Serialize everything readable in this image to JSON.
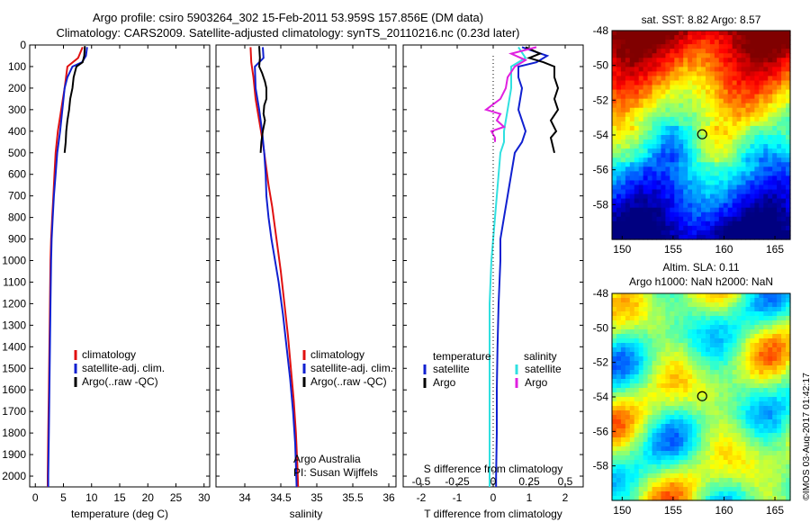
{
  "header": {
    "title1": "Argo profile: csiro 5903264_302 15-Feb-2011 53.959S 157.856E (DM data)",
    "title2": "Climatology: CARS2009. Satellite-adjusted climatology: synTS_20110216.nc (0.23d later)"
  },
  "credit": "©IMOS 03-Aug-2017 01:42:17",
  "colors": {
    "climatology": "#e01010",
    "satellite": "#1020d0",
    "argo": "#000000",
    "sat_salinity": "#30e0e0",
    "argo_salinity": "#e020e0"
  },
  "chart_data": [
    {
      "type": "line",
      "xlabel": "temperature (deg C)",
      "ylabel": "",
      "xlim": [
        -1,
        31
      ],
      "ylim": [
        2050,
        0
      ],
      "xticks": [
        0,
        5,
        10,
        15,
        20,
        25,
        30
      ],
      "yticks": [
        0,
        100,
        200,
        300,
        400,
        500,
        600,
        700,
        800,
        900,
        1000,
        1100,
        1200,
        1300,
        1400,
        1500,
        1600,
        1700,
        1800,
        1900,
        2000
      ],
      "legend": {
        "position": "lower-middle",
        "entries": [
          "climatology",
          "satellite-adj. clim.",
          "Argo(..raw -QC)"
        ]
      },
      "series": [
        {
          "name": "climatology",
          "color": "#e01010",
          "points": [
            [
              8.4,
              10
            ],
            [
              7.6,
              60
            ],
            [
              5.7,
              100
            ],
            [
              5.2,
              200
            ],
            [
              4.6,
              300
            ],
            [
              4.0,
              400
            ],
            [
              3.6,
              500
            ],
            [
              3.4,
              600
            ],
            [
              3.2,
              700
            ],
            [
              3.0,
              800
            ],
            [
              2.8,
              900
            ],
            [
              2.7,
              1000
            ],
            [
              2.6,
              1200
            ],
            [
              2.5,
              1400
            ],
            [
              2.4,
              1600
            ],
            [
              2.3,
              1800
            ],
            [
              2.2,
              2000
            ],
            [
              2.2,
              2050
            ]
          ]
        },
        {
          "name": "satellite-adj. clim.",
          "color": "#1020d0",
          "points": [
            [
              9.2,
              10
            ],
            [
              9.0,
              50
            ],
            [
              8.3,
              80
            ],
            [
              6.6,
              100
            ],
            [
              5.7,
              150
            ],
            [
              5.2,
              200
            ],
            [
              4.8,
              300
            ],
            [
              4.4,
              400
            ],
            [
              3.9,
              500
            ],
            [
              3.6,
              600
            ],
            [
              3.3,
              700
            ],
            [
              3.1,
              800
            ],
            [
              2.9,
              900
            ],
            [
              2.8,
              1000
            ],
            [
              2.7,
              1200
            ],
            [
              2.6,
              1400
            ],
            [
              2.5,
              1600
            ],
            [
              2.4,
              1800
            ],
            [
              2.3,
              2000
            ],
            [
              2.3,
              2050
            ]
          ]
        },
        {
          "name": "Argo(..raw -QC)",
          "color": "#000000",
          "points": [
            [
              8.8,
              5
            ],
            [
              8.7,
              50
            ],
            [
              8.4,
              80
            ],
            [
              7.3,
              100
            ],
            [
              6.8,
              150
            ],
            [
              6.6,
              200
            ],
            [
              6.2,
              250
            ],
            [
              6.0,
              300
            ],
            [
              5.7,
              350
            ],
            [
              5.5,
              400
            ],
            [
              5.4,
              450
            ],
            [
              5.2,
              500
            ]
          ]
        }
      ]
    },
    {
      "type": "line",
      "xlabel": "salinity",
      "ylabel": "",
      "xlim": [
        33.6,
        36.1
      ],
      "ylim": [
        2050,
        0
      ],
      "xticks": [
        34,
        34.5,
        35,
        35.5,
        36
      ],
      "legend": {
        "position": "lower-middle",
        "entries": [
          "climatology",
          "satellite-adj. clim.",
          "Argo(..raw -QC)"
        ]
      },
      "annotation": [
        "Argo Australia",
        "PI: Susan Wijffels"
      ],
      "series": [
        {
          "name": "climatology",
          "color": "#e01010",
          "points": [
            [
              34.08,
              10
            ],
            [
              34.09,
              80
            ],
            [
              34.12,
              150
            ],
            [
              34.15,
              250
            ],
            [
              34.2,
              350
            ],
            [
              34.25,
              450
            ],
            [
              34.29,
              550
            ],
            [
              34.33,
              650
            ],
            [
              34.38,
              750
            ],
            [
              34.42,
              850
            ],
            [
              34.46,
              950
            ],
            [
              34.5,
              1050
            ],
            [
              34.55,
              1200
            ],
            [
              34.6,
              1350
            ],
            [
              34.64,
              1500
            ],
            [
              34.68,
              1650
            ],
            [
              34.71,
              1800
            ],
            [
              34.73,
              1950
            ],
            [
              34.74,
              2050
            ]
          ]
        },
        {
          "name": "satellite-adj. clim.",
          "color": "#1020d0",
          "points": [
            [
              34.25,
              10
            ],
            [
              34.26,
              60
            ],
            [
              34.14,
              100
            ],
            [
              34.15,
              200
            ],
            [
              34.2,
              300
            ],
            [
              34.24,
              400
            ],
            [
              34.27,
              500
            ],
            [
              34.29,
              600
            ],
            [
              34.3,
              700
            ],
            [
              34.33,
              800
            ],
            [
              34.37,
              900
            ],
            [
              34.42,
              1000
            ],
            [
              34.47,
              1100
            ],
            [
              34.53,
              1250
            ],
            [
              34.58,
              1400
            ],
            [
              34.63,
              1550
            ],
            [
              34.67,
              1700
            ],
            [
              34.7,
              1850
            ],
            [
              34.72,
              2050
            ]
          ]
        },
        {
          "name": "Argo(..raw -QC)",
          "color": "#000000",
          "points": [
            [
              34.2,
              5
            ],
            [
              34.21,
              60
            ],
            [
              34.2,
              100
            ],
            [
              34.24,
              130
            ],
            [
              34.28,
              170
            ],
            [
              34.3,
              200
            ],
            [
              34.3,
              250
            ],
            [
              34.27,
              280
            ],
            [
              34.26,
              320
            ],
            [
              34.28,
              350
            ],
            [
              34.25,
              400
            ],
            [
              34.23,
              450
            ],
            [
              34.22,
              500
            ]
          ]
        }
      ]
    },
    {
      "type": "line",
      "xlabel": "T difference from climatology",
      "xlabel_top": "S difference from climatology",
      "xlim": [
        -2.5,
        2.5
      ],
      "ylim": [
        2050,
        0
      ],
      "xticks": [
        -2,
        -1,
        0,
        1,
        2
      ],
      "xticks_s": [
        "-0.5",
        "-0.25",
        "0",
        "0.25",
        "0.5"
      ],
      "legend": {
        "temperature_title": "temperature",
        "salinity_title": "salinity",
        "entries": [
          "satellite",
          "Argo",
          "satellite",
          "Argo"
        ]
      },
      "series": [
        {
          "name": "satellite",
          "color": "#1020d0",
          "points": [
            [
              0.8,
              10
            ],
            [
              1.5,
              50
            ],
            [
              1.2,
              80
            ],
            [
              0.7,
              100
            ],
            [
              0.7,
              150
            ],
            [
              0.8,
              200
            ],
            [
              0.7,
              300
            ],
            [
              0.9,
              400
            ],
            [
              0.8,
              450
            ],
            [
              0.6,
              500
            ],
            [
              0.5,
              600
            ],
            [
              0.4,
              700
            ],
            [
              0.3,
              800
            ],
            [
              0.2,
              900
            ],
            [
              0.2,
              1000
            ],
            [
              0.15,
              1200
            ],
            [
              0.12,
              1400
            ],
            [
              0.1,
              1600
            ],
            [
              0.1,
              1800
            ],
            [
              0.08,
              2000
            ],
            [
              0.08,
              2050
            ]
          ]
        },
        {
          "name": "Argo",
          "color": "#000000",
          "points": [
            [
              0.9,
              10
            ],
            [
              1.3,
              40
            ],
            [
              1.0,
              60
            ],
            [
              1.4,
              80
            ],
            [
              1.7,
              100
            ],
            [
              1.7,
              150
            ],
            [
              1.8,
              200
            ],
            [
              1.7,
              250
            ],
            [
              1.8,
              300
            ],
            [
              1.6,
              350
            ],
            [
              1.75,
              400
            ],
            [
              1.6,
              430
            ],
            [
              1.7,
              500
            ]
          ]
        },
        {
          "name": "satellite",
          "color": "#30e0e0",
          "points": [
            [
              0.7,
              10
            ],
            [
              0.9,
              60
            ],
            [
              0.5,
              100
            ],
            [
              0.5,
              150
            ],
            [
              0.5,
              200
            ],
            [
              0.4,
              300
            ],
            [
              0.3,
              400
            ],
            [
              0.3,
              450
            ],
            [
              0.2,
              500
            ],
            [
              0.15,
              600
            ],
            [
              0.1,
              700
            ],
            [
              0.05,
              800
            ],
            [
              0.0,
              900
            ],
            [
              -0.05,
              1000
            ],
            [
              -0.1,
              1200
            ],
            [
              -0.1,
              1400
            ],
            [
              -0.1,
              1600
            ],
            [
              -0.1,
              1800
            ],
            [
              -0.1,
              2000
            ],
            [
              -0.1,
              2050
            ]
          ]
        },
        {
          "name": "Argo",
          "color": "#e020e0",
          "points": [
            [
              1.2,
              10
            ],
            [
              0.5,
              40
            ],
            [
              0.9,
              70
            ],
            [
              0.6,
              100
            ],
            [
              0.4,
              150
            ],
            [
              0.35,
              200
            ],
            [
              0.2,
              250
            ],
            [
              -0.2,
              300
            ],
            [
              0.2,
              320
            ],
            [
              0.1,
              350
            ],
            [
              0.3,
              380
            ],
            [
              -0.05,
              400
            ],
            [
              0.05,
              430
            ],
            [
              0.05,
              450
            ]
          ]
        }
      ]
    },
    {
      "type": "heatmap",
      "title": "sat. SST: 8.82 Argo: 8.57",
      "xlim": [
        149,
        166.5
      ],
      "ylim": [
        -60,
        -48
      ],
      "xticks": [
        150,
        155,
        160,
        165
      ],
      "yticks": [
        -48,
        -50,
        -52,
        -54,
        -56,
        -58
      ],
      "argo_position": [
        157.856,
        -53.959
      ]
    },
    {
      "type": "heatmap",
      "title": "Altim. SLA: 0.11",
      "subtitle": "Argo h1000: NaN h2000: NaN",
      "xlim": [
        149,
        166.5
      ],
      "ylim": [
        -60,
        -48
      ],
      "xticks": [
        150,
        155,
        160,
        165
      ],
      "yticks": [
        -48,
        -50,
        -52,
        -54,
        -56,
        -58
      ],
      "argo_position": [
        157.856,
        -53.959
      ]
    }
  ]
}
